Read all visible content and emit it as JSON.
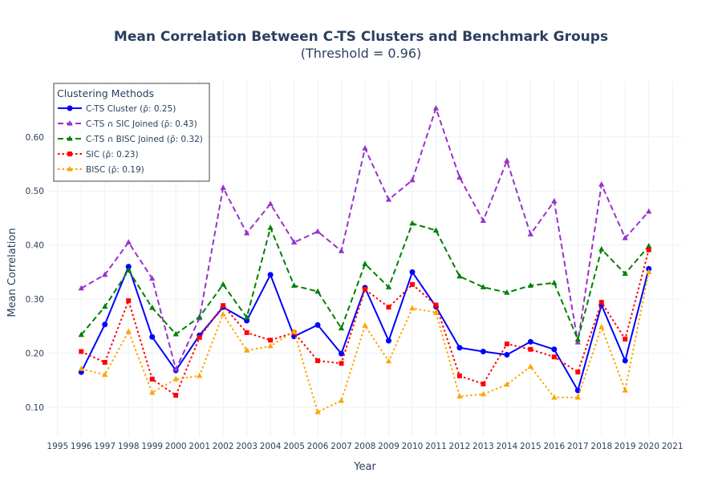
{
  "chart_data": {
    "type": "line",
    "title": "Mean Correlation Between C-TS Clusters and Benchmark Groups",
    "subtitle": "(Threshold = 0.96)",
    "xlabel": "Year",
    "ylabel": "Mean Correlation",
    "xlim": [
      1994.6,
      2021.4
    ],
    "ylim": [
      0.045,
      0.705
    ],
    "x_ticks": [
      1995,
      1996,
      1997,
      1998,
      1999,
      2000,
      2001,
      2002,
      2003,
      2004,
      2005,
      2006,
      2007,
      2008,
      2009,
      2010,
      2011,
      2012,
      2013,
      2014,
      2015,
      2016,
      2017,
      2018,
      2019,
      2020,
      2021
    ],
    "y_ticks": [
      0.1,
      0.2,
      0.3,
      0.4,
      0.5,
      0.6
    ],
    "y_tick_labels": [
      "0.10",
      "0.20",
      "0.30",
      "0.40",
      "0.50",
      "0.60"
    ],
    "grid": true,
    "legend": {
      "title": "Clustering Methods",
      "position": "top-left"
    },
    "x": [
      1996,
      1997,
      1998,
      1999,
      2000,
      2001,
      2002,
      2003,
      2004,
      2005,
      2006,
      2007,
      2008,
      2009,
      2010,
      2011,
      2012,
      2013,
      2014,
      2015,
      2016,
      2017,
      2018,
      2019,
      2020
    ],
    "series": [
      {
        "name": "C-TS Cluster (ρ̄: 0.25)",
        "color": "#0000ff",
        "dash": "solid",
        "marker": "circle",
        "values": [
          0.165,
          0.253,
          0.36,
          0.23,
          0.168,
          0.233,
          0.285,
          0.26,
          0.345,
          0.231,
          0.252,
          0.199,
          0.321,
          0.223,
          0.35,
          0.286,
          0.21,
          0.203,
          0.197,
          0.221,
          0.207,
          0.131,
          0.289,
          0.186,
          0.356
        ]
      },
      {
        "name": "C-TS ∩ SIC Joined (ρ̄: 0.43)",
        "color": "#9932cc",
        "dash": "dash",
        "marker": "triangle-up",
        "values": [
          0.32,
          0.345,
          0.405,
          0.338,
          0.17,
          0.265,
          0.506,
          0.422,
          0.476,
          0.405,
          0.425,
          0.389,
          0.579,
          0.484,
          0.52,
          0.653,
          0.525,
          0.445,
          0.556,
          0.42,
          0.481,
          0.22,
          0.512,
          0.413,
          0.462
        ]
      },
      {
        "name": "C-TS ∩ BISC Joined (ρ̄: 0.32)",
        "color": "#008000",
        "dash": "dash",
        "marker": "triangle-up",
        "values": [
          0.234,
          0.286,
          0.353,
          0.284,
          0.235,
          0.267,
          0.327,
          0.266,
          0.432,
          0.325,
          0.314,
          0.246,
          0.365,
          0.322,
          0.44,
          0.427,
          0.342,
          0.322,
          0.312,
          0.325,
          0.33,
          0.225,
          0.392,
          0.347,
          0.398
        ]
      },
      {
        "name": "SIC (ρ̄: 0.23)",
        "color": "#ff0000",
        "dash": "dot",
        "marker": "square",
        "values": [
          0.203,
          0.183,
          0.297,
          0.152,
          0.122,
          0.229,
          0.288,
          0.238,
          0.224,
          0.238,
          0.186,
          0.181,
          0.318,
          0.285,
          0.327,
          0.289,
          0.158,
          0.143,
          0.217,
          0.207,
          0.193,
          0.165,
          0.294,
          0.226,
          0.391
        ]
      },
      {
        "name": "BISC (ρ̄: 0.19)",
        "color": "#ffa500",
        "dash": "dot",
        "marker": "triangle-up",
        "values": [
          0.171,
          0.16,
          0.24,
          0.127,
          0.152,
          0.158,
          0.272,
          0.205,
          0.213,
          0.24,
          0.091,
          0.112,
          0.251,
          0.185,
          0.283,
          0.275,
          0.12,
          0.124,
          0.142,
          0.175,
          0.118,
          0.118,
          0.248,
          0.131,
          0.35
        ]
      }
    ]
  }
}
